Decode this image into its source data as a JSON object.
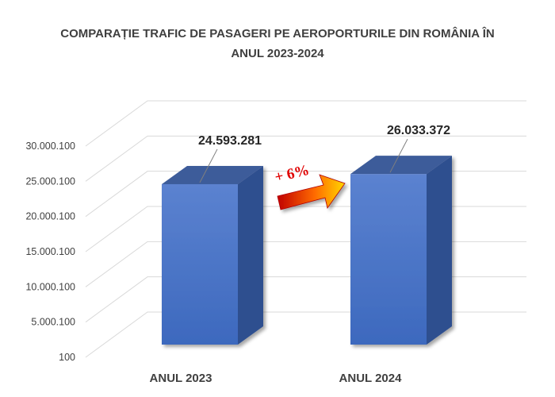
{
  "title_lines": [
    "COMPARAȚIE TRAFIC DE PASAGERI PE AEROPORTURILE DIN ROMÂNIA ÎN",
    "ANUL 2023-2024"
  ],
  "annotation": {
    "label": "+ 6%",
    "arrow_icon": "arrow-right-icon"
  },
  "colors": {
    "bar_front": "#4472C4",
    "bar_side": "#2F4F8F",
    "bar_top": "#3E5C9A",
    "gridline": "#D9D9D9",
    "annotation": "#E00000",
    "arrow_start": "#C00000",
    "arrow_end": "#FFD700"
  },
  "chart_data": {
    "type": "bar",
    "categories": [
      "ANUL 2023",
      "ANUL 2024"
    ],
    "values": [
      24593281,
      26033372
    ],
    "data_labels": [
      "24.593.281",
      "26.033.372"
    ],
    "y_ticks": [
      100,
      5000100,
      10000100,
      15000100,
      20000100,
      25000100,
      30000100
    ],
    "y_tick_labels": [
      "100",
      "5.000.100",
      "10.000.100",
      "15.000.100",
      "20.000.100",
      "25.000.100",
      "30.000.100"
    ],
    "ylim": [
      100,
      30000100
    ],
    "grid": true,
    "legend": "none",
    "title": "COMPARAȚIE TRAFIC DE PASAGERI PE AEROPORTURILE DIN ROMÂNIA ÎN ANUL 2023-2024",
    "xlabel": "",
    "ylabel": ""
  }
}
